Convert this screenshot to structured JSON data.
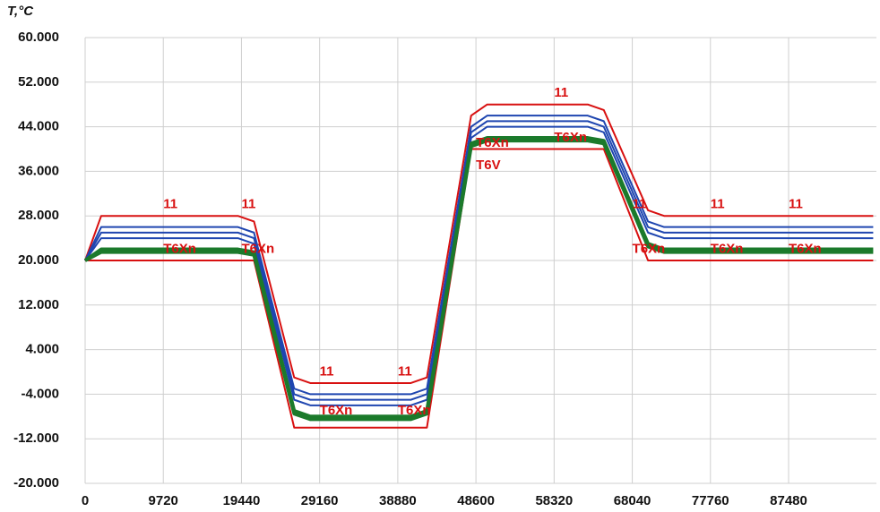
{
  "chart_data": {
    "type": "line",
    "y_label": "T,°C",
    "x": [
      0,
      2000,
      19000,
      21000,
      26000,
      28000,
      40500,
      42500,
      48000,
      50000,
      62500,
      64500,
      70000,
      72000,
      98000
    ],
    "xlim": [
      0,
      98400
    ],
    "xticks": [
      0,
      9720,
      19440,
      29160,
      38880,
      48600,
      58320,
      68040,
      77760,
      87480
    ],
    "ylim": [
      -20,
      60
    ],
    "yticks": [
      {
        "value": -20,
        "label": "-20.000"
      },
      {
        "value": -12,
        "label": "-12.000"
      },
      {
        "value": -4,
        "label": "-4.000"
      },
      {
        "value": 4,
        "label": "4.000"
      },
      {
        "value": 12,
        "label": "12.000"
      },
      {
        "value": 20,
        "label": "20.000"
      },
      {
        "value": 28,
        "label": "28.000"
      },
      {
        "value": 36,
        "label": "36.000"
      },
      {
        "value": 44,
        "label": "44.000"
      },
      {
        "value": 52,
        "label": "52.000"
      },
      {
        "value": 60,
        "label": "60.000"
      }
    ],
    "grid": true,
    "series": [
      {
        "color": "#d81010",
        "values": [
          20,
          28,
          28,
          27,
          -1,
          -2,
          -2,
          -1,
          46,
          48,
          48,
          47,
          29,
          28,
          28
        ]
      },
      {
        "color": "#d81010",
        "values": [
          20,
          20,
          20,
          20,
          -10,
          -10,
          -10,
          -10,
          40,
          40,
          40,
          40,
          20,
          20,
          20
        ]
      },
      {
        "color": "#1f46b0",
        "values": [
          20,
          26,
          26,
          25,
          -3,
          -4,
          -4,
          -3,
          44,
          46,
          46,
          45,
          27,
          26,
          26
        ]
      },
      {
        "color": "#1f46b0",
        "values": [
          20,
          25,
          25,
          24,
          -4,
          -5,
          -5,
          -4,
          43,
          45,
          45,
          44,
          26,
          25,
          25
        ]
      },
      {
        "color": "#1f46b0",
        "values": [
          20,
          24,
          24,
          23,
          -5,
          -6,
          -6,
          -5,
          42,
          44,
          44,
          43,
          25,
          24,
          24
        ]
      },
      {
        "color": "#1b7a2b",
        "values": [
          20,
          22,
          22,
          21.5,
          -7,
          -8,
          -8,
          -7,
          41,
          42,
          42,
          41.5,
          23,
          22,
          22
        ]
      },
      {
        "color": "#1b7a2b",
        "values": [
          20,
          21.5,
          21.5,
          21,
          -7.5,
          -8.5,
          -8.5,
          -7.5,
          40.5,
          41.5,
          41.5,
          41,
          22.5,
          21.5,
          21.5
        ]
      }
    ],
    "annotations": [
      {
        "text": "11",
        "x": 9720,
        "y": 30
      },
      {
        "text": "11",
        "x": 19440,
        "y": 30
      },
      {
        "text": "11",
        "x": 29160,
        "y": 0
      },
      {
        "text": "11",
        "x": 38880,
        "y": 0
      },
      {
        "text": "11",
        "x": 58320,
        "y": 50
      },
      {
        "text": "11",
        "x": 68040,
        "y": 30
      },
      {
        "text": "11",
        "x": 77760,
        "y": 30
      },
      {
        "text": "11",
        "x": 87480,
        "y": 30
      },
      {
        "text": "T6Xn",
        "x": 9720,
        "y": 22
      },
      {
        "text": "T6Xn",
        "x": 19440,
        "y": 22
      },
      {
        "text": "T6Xn",
        "x": 29160,
        "y": -7
      },
      {
        "text": "T6Xn",
        "x": 38880,
        "y": -7
      },
      {
        "text": "T6Xn",
        "x": 48600,
        "y": 41
      },
      {
        "text": "T6V",
        "x": 48600,
        "y": 37
      },
      {
        "text": "T6Xn",
        "x": 58320,
        "y": 42
      },
      {
        "text": "T6Xn",
        "x": 68040,
        "y": 22
      },
      {
        "text": "T6Xn",
        "x": 77760,
        "y": 22
      },
      {
        "text": "T6Xn",
        "x": 87480,
        "y": 22
      }
    ]
  }
}
